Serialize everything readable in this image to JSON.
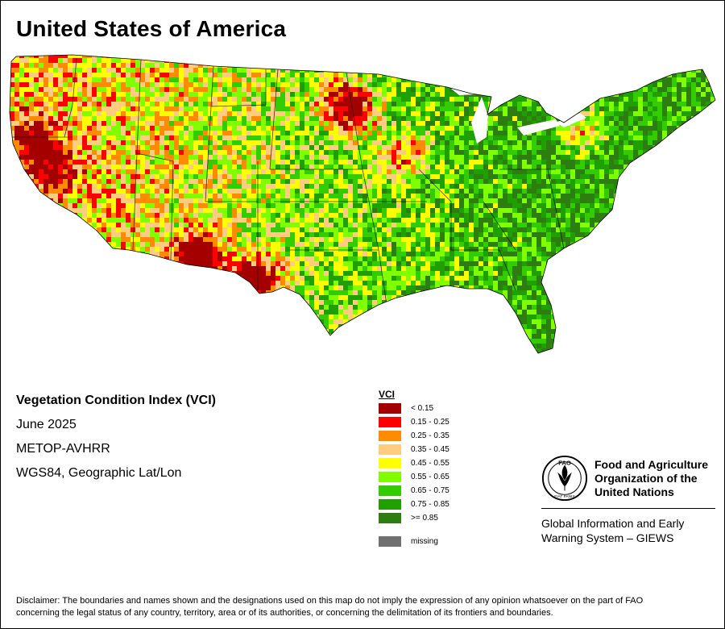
{
  "title": "United States of America",
  "meta": {
    "index": "Vegetation Condition Index (VCI)",
    "period": "June 2025",
    "sensor": "METOP-AVHRR",
    "projection": "WGS84, Geographic Lat/Lon"
  },
  "legend": {
    "title": "VCI",
    "classes": [
      {
        "label": "< 0.15",
        "color": "#a50000"
      },
      {
        "label": "0.15 - 0.25",
        "color": "#ff0000"
      },
      {
        "label": "0.25 - 0.35",
        "color": "#ff8c00"
      },
      {
        "label": "0.35 - 0.45",
        "color": "#ffcc80"
      },
      {
        "label": "0.45 - 0.55",
        "color": "#ffff00"
      },
      {
        "label": "0.55 - 0.65",
        "color": "#80ff00"
      },
      {
        "label": "0.65 - 0.75",
        "color": "#33cc00"
      },
      {
        "label": "0.75 - 0.85",
        "color": "#1fa000"
      },
      {
        "label": ">= 0.85",
        "color": "#2e7d10"
      }
    ],
    "missing": {
      "label": "missing",
      "color": "#707070"
    }
  },
  "fao": {
    "emblem_text": "FIAT PANIS",
    "emblem_letters": "FAO",
    "org_line1": "Food and Agriculture",
    "org_line2": "Organization of the",
    "org_line3": "United Nations",
    "giews_line1": "Global Information and Early",
    "giews_line2": "Warning System – GIEWS"
  },
  "disclaimer_line1": "Disclaimer: The boundaries and names shown and the designations used on this map do not imply the expression of any opinion whatsoever on the part of FAO",
  "disclaimer_line2": "concerning the legal status of any country, territory, area or of its authorities, or concerning the delimitation of its frontiers and boundaries."
}
